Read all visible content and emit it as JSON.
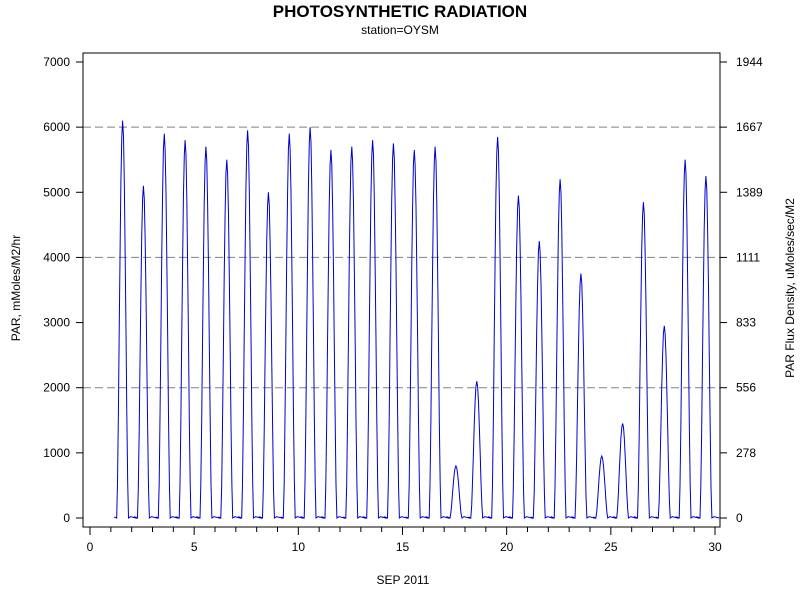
{
  "chart_data": {
    "type": "line",
    "title": "PHOTOSYNTHETIC RADIATION",
    "subtitle": "station=OYSM",
    "xlabel": "SEP 2011",
    "ylabel": "PAR, mMoles/M2/hr",
    "ylabel_right": "PAR Flux Density, uMoles/sec/M2",
    "xlim": [
      0,
      30
    ],
    "ylim": [
      0,
      7000
    ],
    "x_ticks": [
      "0",
      "5",
      "10",
      "15",
      "20",
      "25",
      "30"
    ],
    "x_tick_values": [
      0,
      5,
      10,
      15,
      20,
      25,
      30
    ],
    "y_ticks": [
      "0",
      "1000",
      "2000",
      "3000",
      "4000",
      "5000",
      "6000",
      "7000"
    ],
    "y_tick_values": [
      0,
      1000,
      2000,
      3000,
      4000,
      5000,
      6000,
      7000
    ],
    "y2_ticks": [
      "0",
      "278",
      "556",
      "833",
      "1111",
      "1389",
      "1667",
      "1944"
    ],
    "y2_tick_values": [
      0,
      278,
      556,
      833,
      1111,
      1389,
      1667,
      1944
    ],
    "reference_lines": [
      2000,
      4000,
      6000
    ],
    "line_color": "#0000cc",
    "ref_line_color": "#808080",
    "daily_peaks": [
      {
        "day": 1,
        "peak": 6100
      },
      {
        "day": 2,
        "peak": 5100
      },
      {
        "day": 3,
        "peak": 5900
      },
      {
        "day": 4,
        "peak": 5800
      },
      {
        "day": 5,
        "peak": 5700
      },
      {
        "day": 6,
        "peak": 5500
      },
      {
        "day": 7,
        "peak": 5950
      },
      {
        "day": 8,
        "peak": 5000
      },
      {
        "day": 9,
        "peak": 5900
      },
      {
        "day": 10,
        "peak": 6000
      },
      {
        "day": 11,
        "peak": 5650
      },
      {
        "day": 12,
        "peak": 5700
      },
      {
        "day": 13,
        "peak": 5800
      },
      {
        "day": 14,
        "peak": 5750
      },
      {
        "day": 15,
        "peak": 5650
      },
      {
        "day": 16,
        "peak": 5700
      },
      {
        "day": 17,
        "peak": 800
      },
      {
        "day": 18,
        "peak": 2100
      },
      {
        "day": 19,
        "peak": 5850
      },
      {
        "day": 20,
        "peak": 4950
      },
      {
        "day": 21,
        "peak": 4250
      },
      {
        "day": 22,
        "peak": 5200
      },
      {
        "day": 23,
        "peak": 3750
      },
      {
        "day": 24,
        "peak": 950
      },
      {
        "day": 25,
        "peak": 1450
      },
      {
        "day": 26,
        "peak": 4850
      },
      {
        "day": 27,
        "peak": 2950
      },
      {
        "day": 28,
        "peak": 5500
      },
      {
        "day": 29,
        "peak": 5250
      }
    ]
  }
}
